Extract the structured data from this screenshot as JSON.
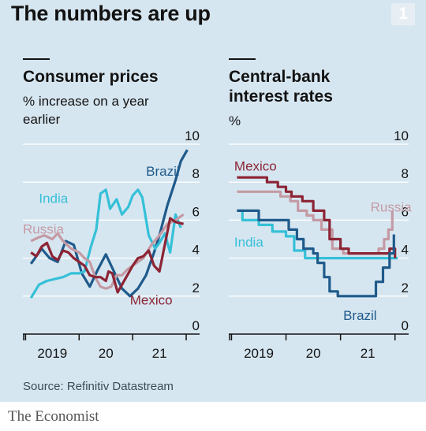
{
  "title": "The numbers are up",
  "badge": "1",
  "source": "Source: Refinitiv Datastream",
  "brand": "The Economist",
  "colors": {
    "background": "#d6e6f0",
    "Brazil": "#1f5a8b",
    "India": "#35c0d8",
    "Russia": "#c49aa4",
    "Mexico": "#8c2434",
    "grid": "#ffffff"
  },
  "chart_data": [
    {
      "type": "line",
      "title": "Consumer prices",
      "subtitle": "% increase on a year earlier",
      "ylim": [
        0,
        10
      ],
      "yticks": [
        0,
        2,
        4,
        6,
        8,
        10
      ],
      "xlim": [
        2018.45,
        2021.75
      ],
      "xtick_labels": [
        {
          "label": "2019",
          "x": 2019.0
        },
        {
          "label": "20",
          "x": 2020.0
        },
        {
          "label": "21",
          "x": 2021.0
        }
      ],
      "series": [
        {
          "name": "Brazil",
          "points": [
            [
              2018.6,
              3.7
            ],
            [
              2018.8,
              4.5
            ],
            [
              2018.95,
              4.0
            ],
            [
              2019.1,
              3.8
            ],
            [
              2019.25,
              4.9
            ],
            [
              2019.4,
              4.7
            ],
            [
              2019.55,
              3.2
            ],
            [
              2019.7,
              2.5
            ],
            [
              2019.85,
              3.4
            ],
            [
              2020.0,
              4.2
            ],
            [
              2020.15,
              3.3
            ],
            [
              2020.3,
              2.4
            ],
            [
              2020.45,
              2.0
            ],
            [
              2020.6,
              2.4
            ],
            [
              2020.75,
              3.1
            ],
            [
              2020.9,
              4.3
            ],
            [
              2021.0,
              5.2
            ],
            [
              2021.15,
              6.8
            ],
            [
              2021.3,
              8.1
            ],
            [
              2021.4,
              9.1
            ],
            [
              2021.52,
              9.7
            ]
          ]
        },
        {
          "name": "India",
          "points": [
            [
              2018.6,
              1.9
            ],
            [
              2018.75,
              2.6
            ],
            [
              2018.9,
              2.8
            ],
            [
              2019.05,
              2.9
            ],
            [
              2019.2,
              3.0
            ],
            [
              2019.35,
              3.2
            ],
            [
              2019.5,
              3.2
            ],
            [
              2019.6,
              3.3
            ],
            [
              2019.72,
              4.6
            ],
            [
              2019.82,
              5.5
            ],
            [
              2019.9,
              7.4
            ],
            [
              2020.0,
              7.6
            ],
            [
              2020.08,
              6.6
            ],
            [
              2020.2,
              7.1
            ],
            [
              2020.3,
              6.3
            ],
            [
              2020.42,
              6.7
            ],
            [
              2020.5,
              7.3
            ],
            [
              2020.6,
              7.6
            ],
            [
              2020.68,
              7.2
            ],
            [
              2020.8,
              5.2
            ],
            [
              2020.92,
              4.5
            ],
            [
              2021.0,
              4.8
            ],
            [
              2021.1,
              5.3
            ],
            [
              2021.2,
              4.3
            ],
            [
              2021.3,
              6.3
            ],
            [
              2021.4,
              5.6
            ]
          ]
        },
        {
          "name": "Russia",
          "points": [
            [
              2018.6,
              4.9
            ],
            [
              2018.75,
              5.1
            ],
            [
              2018.85,
              5.2
            ],
            [
              2019.0,
              5.0
            ],
            [
              2019.1,
              5.3
            ],
            [
              2019.2,
              4.9
            ],
            [
              2019.35,
              4.5
            ],
            [
              2019.5,
              4.3
            ],
            [
              2019.6,
              4.0
            ],
            [
              2019.7,
              3.8
            ],
            [
              2019.8,
              3.0
            ],
            [
              2019.9,
              2.5
            ],
            [
              2020.0,
              2.4
            ],
            [
              2020.1,
              2.5
            ],
            [
              2020.2,
              3.1
            ],
            [
              2020.3,
              3.1
            ],
            [
              2020.4,
              3.4
            ],
            [
              2020.55,
              3.7
            ],
            [
              2020.7,
              4.0
            ],
            [
              2020.85,
              4.7
            ],
            [
              2021.0,
              5.2
            ],
            [
              2021.15,
              5.8
            ],
            [
              2021.3,
              6.0
            ],
            [
              2021.45,
              6.3
            ]
          ]
        },
        {
          "name": "Mexico",
          "points": [
            [
              2018.6,
              4.3
            ],
            [
              2018.7,
              4.1
            ],
            [
              2018.8,
              4.6
            ],
            [
              2018.9,
              4.8
            ],
            [
              2019.0,
              4.1
            ],
            [
              2019.1,
              3.9
            ],
            [
              2019.2,
              4.4
            ],
            [
              2019.3,
              4.3
            ],
            [
              2019.4,
              4.0
            ],
            [
              2019.5,
              3.8
            ],
            [
              2019.6,
              3.6
            ],
            [
              2019.7,
              3.1
            ],
            [
              2019.8,
              3.0
            ],
            [
              2019.9,
              3.0
            ],
            [
              2020.0,
              2.8
            ],
            [
              2020.05,
              3.3
            ],
            [
              2020.12,
              3.2
            ],
            [
              2020.22,
              2.2
            ],
            [
              2020.3,
              2.6
            ],
            [
              2020.4,
              3.1
            ],
            [
              2020.5,
              3.6
            ],
            [
              2020.6,
              4.0
            ],
            [
              2020.7,
              4.1
            ],
            [
              2020.8,
              4.4
            ],
            [
              2020.9,
              3.6
            ],
            [
              2021.0,
              3.3
            ],
            [
              2021.1,
              4.7
            ],
            [
              2021.2,
              6.1
            ],
            [
              2021.3,
              5.9
            ],
            [
              2021.45,
              5.8
            ]
          ]
        }
      ],
      "labels": [
        {
          "text": "Brazil",
          "series": "Brazil",
          "x": 2020.75,
          "y": 8.35
        },
        {
          "text": "India",
          "series": "India",
          "x": 2018.75,
          "y": 6.9
        },
        {
          "text": "Russia",
          "series": "Russia",
          "x": 2018.45,
          "y": 5.3
        },
        {
          "text": "Mexico",
          "series": "Mexico",
          "x": 2020.45,
          "y": 1.55
        }
      ]
    },
    {
      "type": "line",
      "title": "Central-bank interest rates",
      "subtitle": "%",
      "ylim": [
        0,
        10
      ],
      "yticks": [
        0,
        2,
        4,
        6,
        8,
        10
      ],
      "xlim": [
        2018.45,
        2021.75
      ],
      "xtick_labels": [
        {
          "label": "2019",
          "x": 2019.0
        },
        {
          "label": "20",
          "x": 2020.0
        },
        {
          "label": "21",
          "x": 2021.0
        }
      ],
      "series": [
        {
          "name": "Russia",
          "points": [
            [
              2018.6,
              7.5
            ],
            [
              2019.4,
              7.5
            ],
            [
              2019.4,
              7.25
            ],
            [
              2019.58,
              7.25
            ],
            [
              2019.58,
              7.0
            ],
            [
              2019.72,
              7.0
            ],
            [
              2019.72,
              6.5
            ],
            [
              2019.88,
              6.5
            ],
            [
              2019.88,
              6.25
            ],
            [
              2020.0,
              6.25
            ],
            [
              2020.0,
              6.0
            ],
            [
              2020.15,
              6.0
            ],
            [
              2020.15,
              5.5
            ],
            [
              2020.35,
              5.5
            ],
            [
              2020.35,
              4.5
            ],
            [
              2020.55,
              4.5
            ],
            [
              2020.55,
              4.25
            ],
            [
              2021.2,
              4.25
            ],
            [
              2021.2,
              4.5
            ],
            [
              2021.3,
              4.5
            ],
            [
              2021.3,
              5.0
            ],
            [
              2021.38,
              5.0
            ],
            [
              2021.38,
              5.5
            ],
            [
              2021.45,
              5.5
            ],
            [
              2021.45,
              6.5
            ]
          ]
        },
        {
          "name": "India",
          "points": [
            [
              2018.6,
              6.5
            ],
            [
              2018.7,
              6.5
            ],
            [
              2018.7,
              6.0
            ],
            [
              2019.0,
              6.0
            ],
            [
              2019.0,
              5.75
            ],
            [
              2019.25,
              5.75
            ],
            [
              2019.25,
              5.4
            ],
            [
              2019.5,
              5.4
            ],
            [
              2019.5,
              5.15
            ],
            [
              2019.65,
              5.15
            ],
            [
              2019.65,
              4.4
            ],
            [
              2019.85,
              4.4
            ],
            [
              2019.85,
              4.0
            ],
            [
              2021.55,
              4.0
            ]
          ]
        },
        {
          "name": "Mexico",
          "points": [
            [
              2018.6,
              8.25
            ],
            [
              2019.15,
              8.25
            ],
            [
              2019.15,
              8.0
            ],
            [
              2019.35,
              8.0
            ],
            [
              2019.35,
              7.75
            ],
            [
              2019.5,
              7.75
            ],
            [
              2019.5,
              7.5
            ],
            [
              2019.6,
              7.5
            ],
            [
              2019.6,
              7.25
            ],
            [
              2019.8,
              7.25
            ],
            [
              2019.8,
              7.0
            ],
            [
              2020.0,
              7.0
            ],
            [
              2020.0,
              6.5
            ],
            [
              2020.2,
              6.5
            ],
            [
              2020.2,
              6.0
            ],
            [
              2020.3,
              6.0
            ],
            [
              2020.3,
              5.0
            ],
            [
              2020.5,
              5.0
            ],
            [
              2020.5,
              4.5
            ],
            [
              2020.65,
              4.5
            ],
            [
              2020.65,
              4.25
            ],
            [
              2021.4,
              4.25
            ],
            [
              2021.4,
              4.5
            ],
            [
              2021.5,
              4.5
            ],
            [
              2021.5,
              4.0
            ]
          ]
        },
        {
          "name": "Brazil",
          "points": [
            [
              2018.6,
              6.5
            ],
            [
              2019.0,
              6.5
            ],
            [
              2019.0,
              6.0
            ],
            [
              2019.55,
              6.0
            ],
            [
              2019.55,
              5.5
            ],
            [
              2019.7,
              5.5
            ],
            [
              2019.7,
              5.0
            ],
            [
              2019.82,
              5.0
            ],
            [
              2019.82,
              4.5
            ],
            [
              2020.0,
              4.5
            ],
            [
              2020.0,
              4.25
            ],
            [
              2020.08,
              4.25
            ],
            [
              2020.08,
              3.75
            ],
            [
              2020.2,
              3.75
            ],
            [
              2020.2,
              3.0
            ],
            [
              2020.3,
              3.0
            ],
            [
              2020.3,
              2.25
            ],
            [
              2020.45,
              2.25
            ],
            [
              2020.45,
              2.0
            ],
            [
              2021.15,
              2.0
            ],
            [
              2021.15,
              2.75
            ],
            [
              2021.28,
              2.75
            ],
            [
              2021.28,
              3.5
            ],
            [
              2021.4,
              3.5
            ],
            [
              2021.4,
              4.25
            ],
            [
              2021.48,
              4.25
            ],
            [
              2021.48,
              5.25
            ]
          ]
        }
      ],
      "labels": [
        {
          "text": "Mexico",
          "series": "Mexico",
          "x": 2018.55,
          "y": 8.6
        },
        {
          "text": "Russia",
          "series": "Russia",
          "x": 2021.05,
          "y": 6.45
        },
        {
          "text": "India",
          "series": "India",
          "x": 2018.55,
          "y": 4.6
        },
        {
          "text": "Brazil",
          "series": "Brazil",
          "x": 2020.55,
          "y": 0.75
        }
      ]
    }
  ]
}
